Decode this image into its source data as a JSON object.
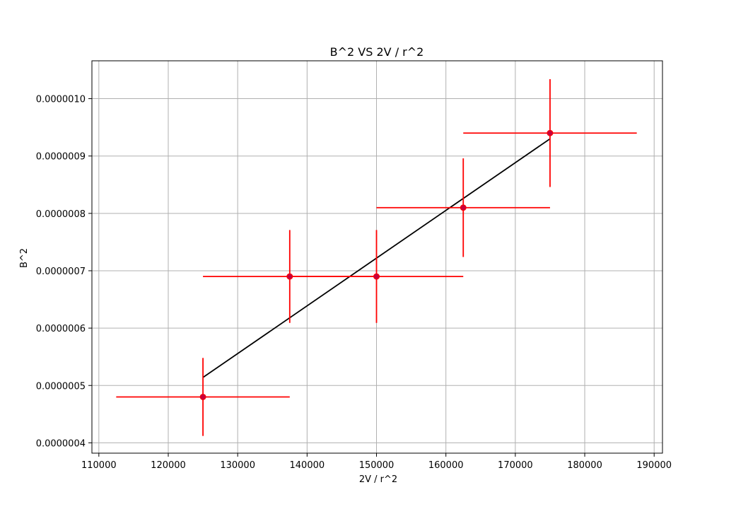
{
  "chart_data": {
    "type": "scatter",
    "title": "B^2 VS 2V / r^2",
    "xlabel": "2V / r^2",
    "ylabel": "B^2",
    "xlim": [
      109000,
      191200
    ],
    "ylim": [
      3.82e-07,
      1.066e-06
    ],
    "xticks": [
      110000,
      120000,
      130000,
      140000,
      150000,
      160000,
      170000,
      180000,
      190000
    ],
    "xtick_labels": [
      "110000",
      "120000",
      "130000",
      "140000",
      "150000",
      "160000",
      "170000",
      "180000",
      "190000"
    ],
    "yticks": [
      4e-07,
      5e-07,
      6e-07,
      7e-07,
      8e-07,
      9e-07,
      1e-06
    ],
    "ytick_labels": [
      "0.0000004",
      "0.0000005",
      "0.0000006",
      "0.0000007",
      "0.0000008",
      "0.0000009",
      "0.0000010"
    ],
    "grid": true,
    "points": [
      {
        "x": 125000,
        "y": 4.8e-07,
        "xerr": 12500,
        "yerr": 6.8e-08
      },
      {
        "x": 137500,
        "y": 6.9e-07,
        "xerr": 12500,
        "yerr": 8.1e-08
      },
      {
        "x": 150000,
        "y": 6.9e-07,
        "xerr": 12500,
        "yerr": 8.1e-08
      },
      {
        "x": 162500,
        "y": 8.1e-07,
        "xerr": 12500,
        "yerr": 8.6e-08
      },
      {
        "x": 175000,
        "y": 9.4e-07,
        "xerr": 12500,
        "yerr": 9.4e-08
      }
    ],
    "fit_line": {
      "x": [
        125000,
        175000
      ],
      "y": [
        5.14e-07,
        9.3e-07
      ]
    },
    "colors": {
      "errorbar": "#ff0000",
      "marker_face": "#c8003c",
      "marker_edge": "#ff0000",
      "fit_line": "#000000",
      "grid": "#b0b0b0",
      "axes": "#000000"
    }
  }
}
